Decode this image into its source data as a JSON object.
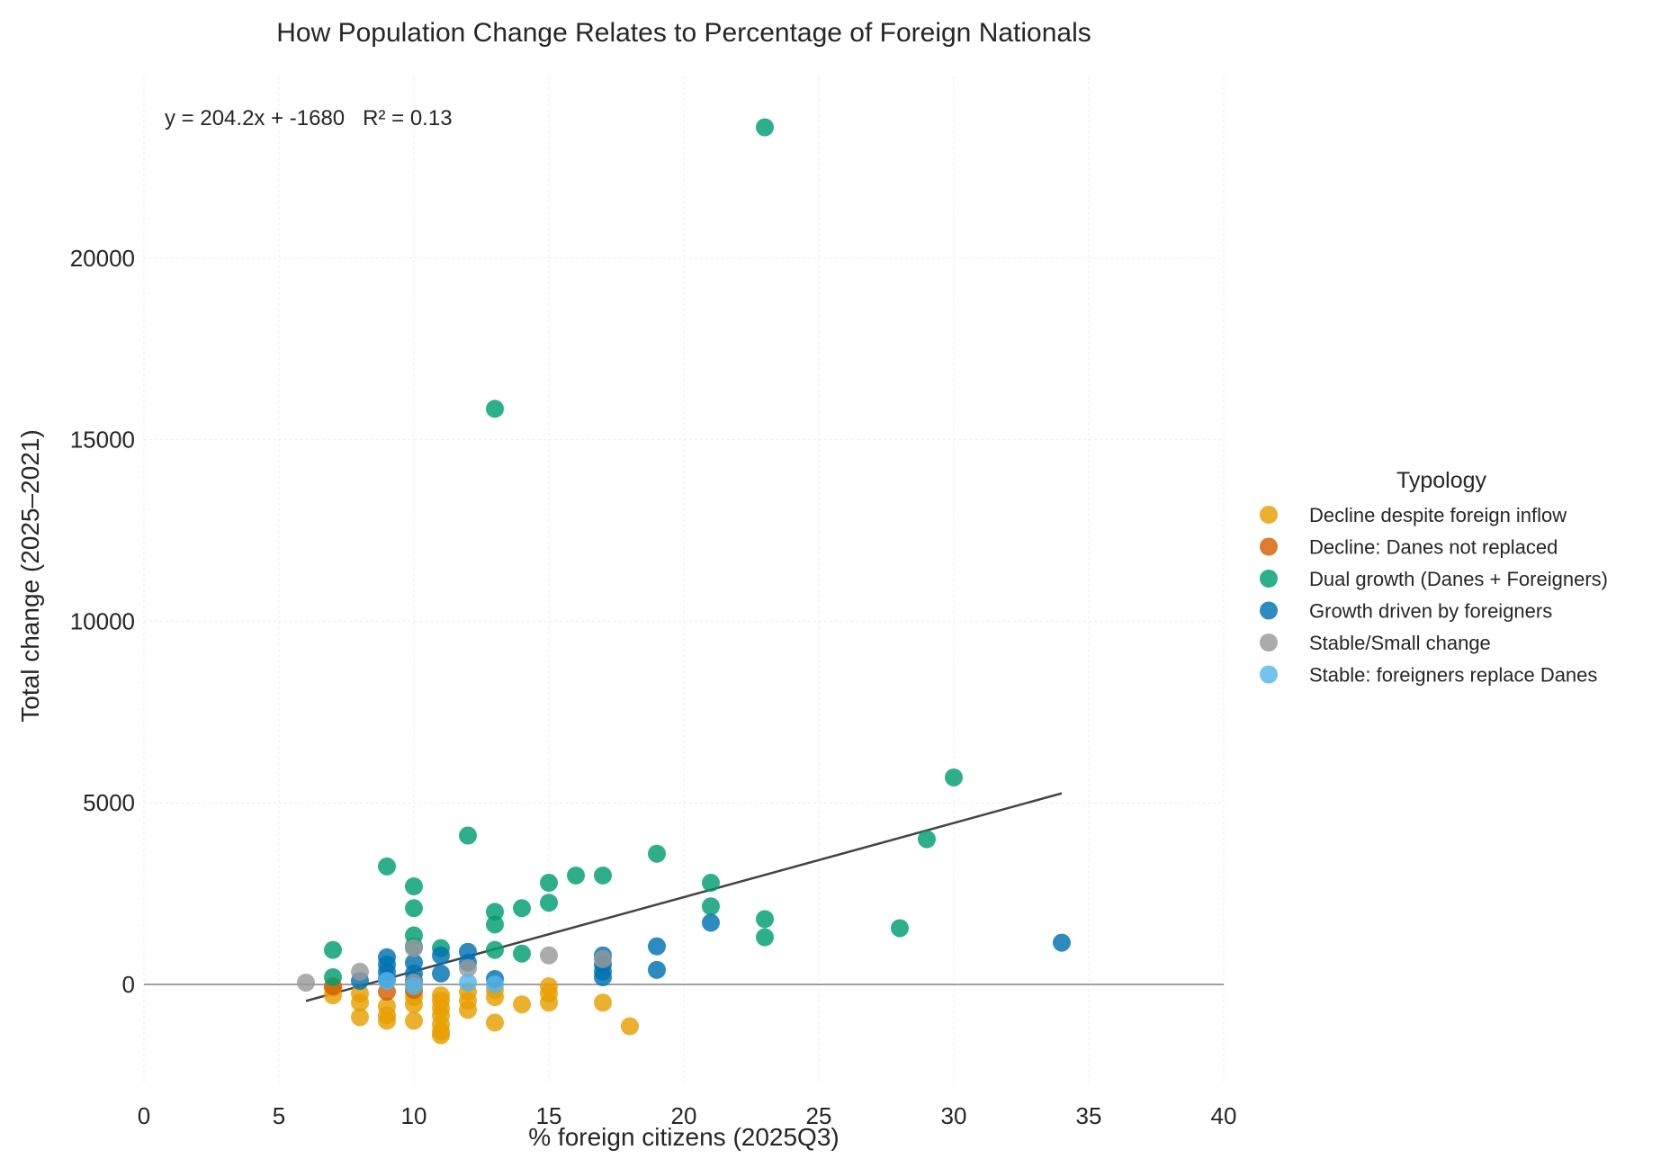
{
  "chart_data": {
    "type": "scatter",
    "title": "How Population Change Relates to Percentage of Foreign Nationals",
    "xlabel": "% foreign citizens (2025Q3)",
    "ylabel": "Total change (2025–2021)",
    "xlim": [
      0,
      40
    ],
    "ylim": [
      -2700,
      25000
    ],
    "x_ticks": [
      0,
      5,
      10,
      15,
      20,
      25,
      30,
      35,
      40
    ],
    "y_ticks": [
      0,
      5000,
      10000,
      15000,
      20000
    ],
    "grid": true,
    "zero_line": true,
    "annotation": "y = 204.2x + -1680   R² = 0.13",
    "trendline": {
      "slope": 204.2,
      "intercept": -1680,
      "x_range": [
        6,
        34
      ],
      "color": "#444444"
    },
    "legend": {
      "title": "Typology",
      "placement": "right"
    },
    "series": [
      {
        "name": "Decline despite foreign inflow",
        "color": "#E69F00",
        "points": [
          [
            7,
            -300
          ],
          [
            7,
            -100
          ],
          [
            8,
            -500
          ],
          [
            8,
            -900
          ],
          [
            8,
            -250
          ],
          [
            9,
            -1000
          ],
          [
            9,
            -850
          ],
          [
            9,
            -600
          ],
          [
            10,
            -1000
          ],
          [
            10,
            -550
          ],
          [
            10,
            -350
          ],
          [
            10,
            -200
          ],
          [
            11,
            -1300
          ],
          [
            11,
            -1100
          ],
          [
            11,
            -850
          ],
          [
            11,
            -650
          ],
          [
            11,
            -450
          ],
          [
            11,
            -300
          ],
          [
            11,
            -1400
          ],
          [
            12,
            -700
          ],
          [
            12,
            -450
          ],
          [
            12,
            -200
          ],
          [
            13,
            -1050
          ],
          [
            13,
            -350
          ],
          [
            13,
            -150
          ],
          [
            14,
            -550
          ],
          [
            15,
            -500
          ],
          [
            15,
            -250
          ],
          [
            15,
            -50
          ],
          [
            17,
            -500
          ],
          [
            18,
            -1150
          ]
        ]
      },
      {
        "name": "Decline: Danes not replaced",
        "color": "#D55E00",
        "points": [
          [
            7,
            -50
          ],
          [
            9,
            -200
          ],
          [
            10,
            -150
          ]
        ]
      },
      {
        "name": "Dual growth (Danes + Foreigners)",
        "color": "#009E73",
        "points": [
          [
            23,
            23600
          ],
          [
            13,
            15850
          ],
          [
            30,
            5700
          ],
          [
            12,
            4100
          ],
          [
            29,
            4000
          ],
          [
            19,
            3600
          ],
          [
            9,
            3250
          ],
          [
            16,
            3000
          ],
          [
            17,
            3000
          ],
          [
            15,
            2800
          ],
          [
            21,
            2800
          ],
          [
            10,
            2700
          ],
          [
            15,
            2250
          ],
          [
            10,
            2100
          ],
          [
            14,
            2100
          ],
          [
            21,
            2150
          ],
          [
            13,
            2000
          ],
          [
            23,
            1800
          ],
          [
            13,
            1650
          ],
          [
            28,
            1550
          ],
          [
            10,
            1350
          ],
          [
            23,
            1300
          ],
          [
            11,
            1000
          ],
          [
            10,
            1050
          ],
          [
            13,
            950
          ],
          [
            7,
            950
          ],
          [
            14,
            850
          ],
          [
            7,
            200
          ]
        ]
      },
      {
        "name": "Growth driven by foreigners",
        "color": "#0072B2",
        "points": [
          [
            34,
            1150
          ],
          [
            21,
            1700
          ],
          [
            19,
            1050
          ],
          [
            19,
            400
          ],
          [
            17,
            800
          ],
          [
            17,
            550
          ],
          [
            17,
            350
          ],
          [
            17,
            200
          ],
          [
            12,
            900
          ],
          [
            12,
            600
          ],
          [
            13,
            150
          ],
          [
            11,
            800
          ],
          [
            11,
            300
          ],
          [
            10,
            600
          ],
          [
            10,
            300
          ],
          [
            10,
            100
          ],
          [
            9,
            750
          ],
          [
            9,
            550
          ],
          [
            9,
            350
          ],
          [
            9,
            150
          ],
          [
            8,
            100
          ]
        ]
      },
      {
        "name": "Stable/Small change",
        "color": "#999999",
        "points": [
          [
            6,
            50
          ],
          [
            8,
            350
          ],
          [
            10,
            1000
          ],
          [
            10,
            50
          ],
          [
            12,
            450
          ],
          [
            15,
            800
          ],
          [
            17,
            700
          ]
        ]
      },
      {
        "name": "Stable: foreigners replace Danes",
        "color": "#56B4E9",
        "points": [
          [
            10,
            -50
          ],
          [
            12,
            50
          ],
          [
            13,
            0
          ],
          [
            9,
            100
          ]
        ]
      }
    ]
  }
}
